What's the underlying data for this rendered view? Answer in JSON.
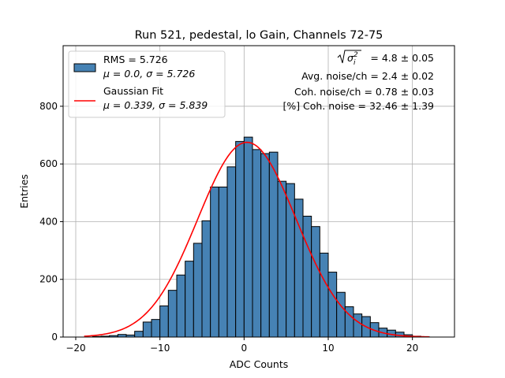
{
  "chart_data": {
    "type": "bar",
    "title": "Run 521, pedestal, lo Gain, Channels 72-75",
    "xlabel": "ADC Counts",
    "ylabel": "Entries",
    "xlim": [
      -21.5,
      25
    ],
    "ylim": [
      0,
      1010
    ],
    "xticks": [
      -20,
      -10,
      0,
      10,
      20
    ],
    "yticks": [
      0,
      200,
      400,
      600,
      800
    ],
    "grid": true,
    "legend_position": "upper-left",
    "bin_width": 1,
    "bins_left": [
      -18,
      -17,
      -16,
      -15,
      -14,
      -13,
      -12,
      -11,
      -10,
      -9,
      -8,
      -7,
      -6,
      -5,
      -4,
      -3,
      -2,
      -1,
      0,
      1,
      2,
      3,
      4,
      5,
      6,
      7,
      8,
      9,
      10,
      11,
      12,
      13,
      14,
      15,
      16,
      17,
      18,
      19,
      20,
      21
    ],
    "values": [
      2,
      3,
      5,
      9,
      7,
      20,
      52,
      61,
      108,
      162,
      215,
      263,
      325,
      403,
      520,
      520,
      590,
      678,
      693,
      650,
      636,
      641,
      540,
      532,
      478,
      419,
      383,
      291,
      225,
      155,
      105,
      80,
      71,
      50,
      31,
      24,
      17,
      8,
      3,
      1
    ],
    "series": [
      {
        "name": "RMS = 5.726",
        "name_line2": "μ = 0.0, σ = 5.726",
        "kind": "histogram",
        "color": "#4682b4",
        "edge_color": "#000000"
      },
      {
        "name": "Gaussian Fit",
        "name_line2": "μ = 0.339, σ = 5.839",
        "kind": "line",
        "color": "#ff0000",
        "fit": {
          "mu": 0.339,
          "sigma": 5.839,
          "amplitude": 675,
          "x_range": [
            -19,
            22
          ]
        }
      }
    ],
    "annotations": {
      "sigma_label": "= 4.8 ± 0.05",
      "avg_noise": "Avg. noise/ch = 2.4 ± 0.02",
      "coh_noise": "Coh. noise/ch = 0.78 ± 0.03",
      "pct_coh_noise": "[%] Coh. noise = 32.46 ± 1.39"
    }
  }
}
